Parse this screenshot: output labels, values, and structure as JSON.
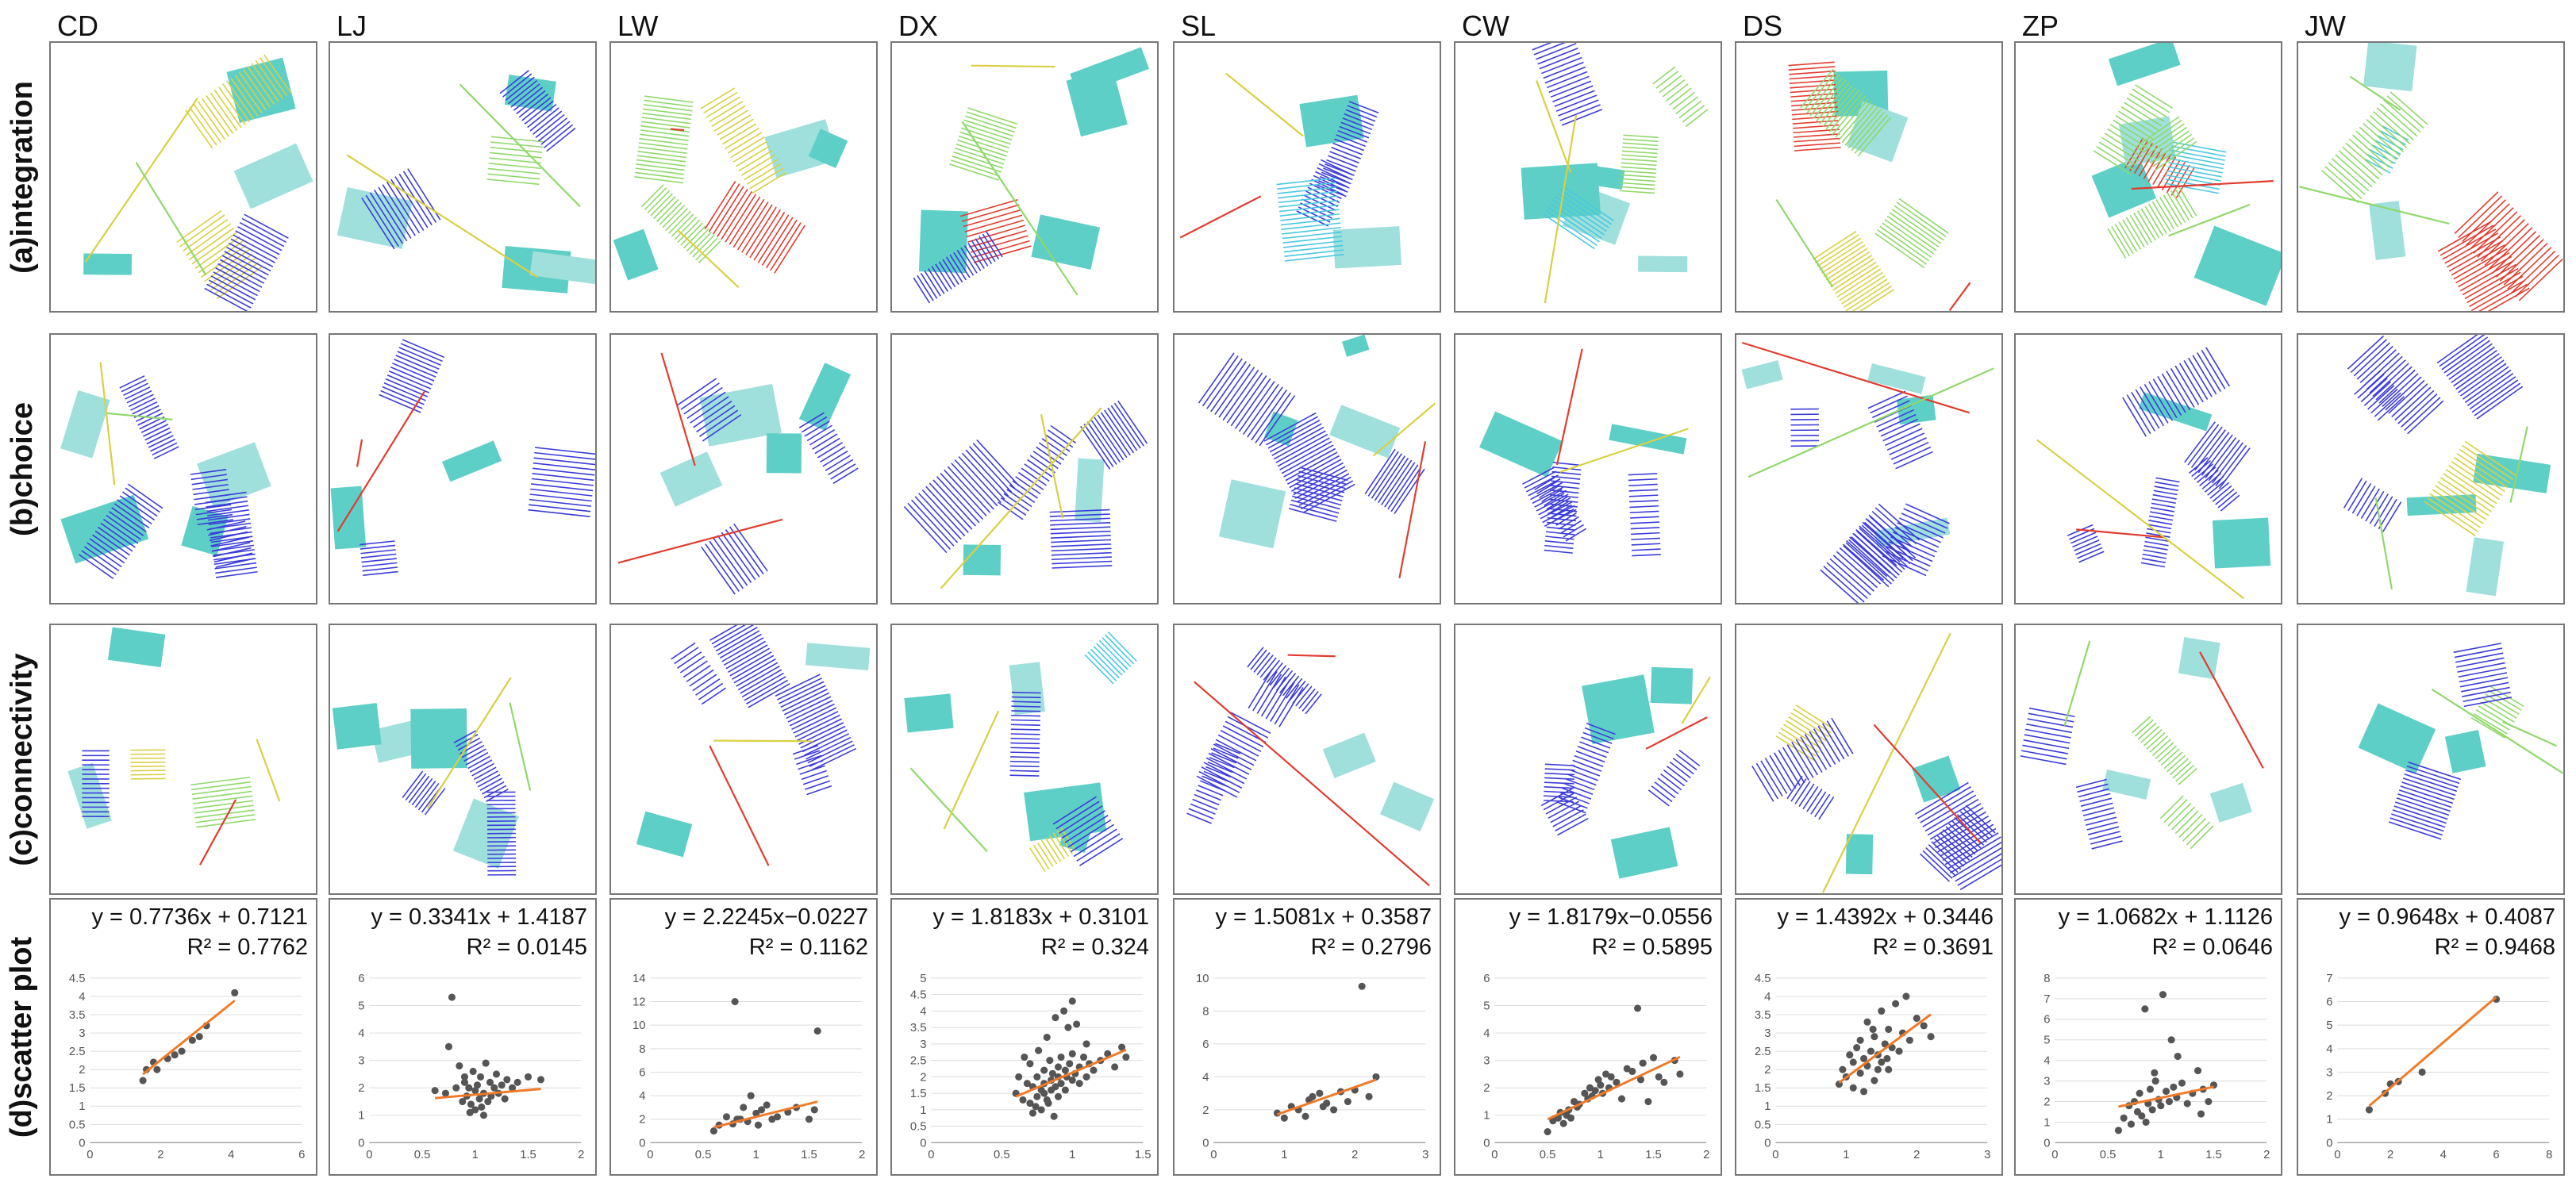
{
  "figure": {
    "columns": [
      "CD",
      "LJ",
      "LW",
      "DX",
      "SL",
      "CW",
      "DS",
      "ZP",
      "JW"
    ],
    "rows": [
      {
        "label": "(a)integration",
        "key": "integration"
      },
      {
        "label": "(b)choice",
        "key": "choice"
      },
      {
        "label": "(c)connectivity",
        "key": "connectivity"
      },
      {
        "label": "(d)scatter plot",
        "key": "scatter"
      }
    ],
    "colors": {
      "block_fill": "#5ecfc6",
      "block_light": "#9fdfdc",
      "line_low": "#3b3bd9",
      "line_mid_low": "#48c8e0",
      "line_mid": "#8fd86a",
      "line_high_mid": "#d8d040",
      "line_high": "#e23b2e",
      "trend_line": "#f07a28",
      "scatter_point": "#555555",
      "frame": "#777777"
    }
  },
  "chart_data": [
    {
      "type": "scatter",
      "site": "CD",
      "equation": "y = 0.7736x + 0.7121",
      "r2": "R² = 0.7762",
      "slope": 0.7736,
      "intercept": 0.7121,
      "xlim": [
        0,
        6
      ],
      "ylim": [
        0,
        4.5
      ],
      "xticks": [
        "0",
        "2",
        "4",
        "6"
      ],
      "yticks": [
        "0",
        "0.5",
        "1",
        "1.5",
        "2",
        "2.5",
        "3",
        "3.5",
        "4",
        "4.5"
      ],
      "x": [
        1.5,
        1.6,
        1.8,
        1.9,
        2.2,
        2.4,
        2.6,
        2.9,
        3.1,
        3.3,
        4.1
      ],
      "y": [
        1.7,
        2.0,
        2.2,
        2.0,
        2.3,
        2.4,
        2.5,
        2.8,
        2.9,
        3.2,
        4.1
      ]
    },
    {
      "type": "scatter",
      "site": "LJ",
      "equation": "y = 0.3341x + 1.4187",
      "r2": "R² = 0.0145",
      "slope": 0.3341,
      "intercept": 1.4187,
      "xlim": [
        0,
        2
      ],
      "ylim": [
        0,
        6
      ],
      "xticks": [
        "0",
        "0.5",
        "1",
        "1.5",
        "2"
      ],
      "yticks": [
        "0",
        "1",
        "2",
        "3",
        "4",
        "5",
        "6"
      ],
      "x": [
        0.62,
        0.72,
        0.75,
        0.78,
        0.82,
        0.85,
        0.88,
        0.9,
        0.92,
        0.94,
        0.96,
        0.98,
        1.0,
        1.0,
        1.02,
        1.04,
        1.05,
        1.06,
        1.08,
        1.1,
        1.12,
        1.14,
        1.15,
        1.18,
        1.2,
        1.22,
        1.25,
        1.28,
        1.3,
        1.35,
        1.4,
        1.5,
        1.62,
        0.95,
        0.9,
        1.08
      ],
      "y": [
        1.9,
        1.8,
        3.5,
        5.3,
        2.0,
        2.8,
        1.5,
        2.2,
        1.7,
        2.0,
        1.4,
        2.6,
        1.9,
        1.2,
        2.1,
        1.6,
        2.4,
        1.3,
        1.8,
        2.9,
        1.5,
        2.2,
        1.7,
        2.0,
        2.5,
        1.8,
        2.1,
        1.6,
        2.3,
        2.0,
        2.2,
        2.4,
        2.3,
        1.1,
        2.4,
        1.0
      ]
    },
    {
      "type": "scatter",
      "site": "LW",
      "equation": "y = 2.2245x−0.0227",
      "r2": "R² = 0.1162",
      "slope": 2.2245,
      "intercept": -0.0227,
      "xlim": [
        0,
        2
      ],
      "ylim": [
        0,
        14
      ],
      "xticks": [
        "0",
        "0.5",
        "1",
        "1.5",
        "2"
      ],
      "yticks": [
        "0",
        "2",
        "4",
        "6",
        "8",
        "10",
        "12",
        "14"
      ],
      "x": [
        0.6,
        0.65,
        0.72,
        0.78,
        0.8,
        0.85,
        0.88,
        0.92,
        0.95,
        1.0,
        1.02,
        1.05,
        1.1,
        1.15,
        1.2,
        1.3,
        1.38,
        1.5,
        1.55,
        1.58,
        0.82
      ],
      "y": [
        1.0,
        1.5,
        2.2,
        1.6,
        12.0,
        2.0,
        3.0,
        1.8,
        4.0,
        2.5,
        1.5,
        2.8,
        3.2,
        2.0,
        2.2,
        2.6,
        3.0,
        2.0,
        2.8,
        9.5,
        2.0
      ]
    },
    {
      "type": "scatter",
      "site": "DX",
      "equation": "y = 1.8183x + 0.3101",
      "r2": "R² = 0.324",
      "slope": 1.8183,
      "intercept": 0.3101,
      "xlim": [
        0,
        1.5
      ],
      "ylim": [
        0,
        5
      ],
      "xticks": [
        "0",
        "0.5",
        "1",
        "1.5"
      ],
      "yticks": [
        "0",
        "0.5",
        "1",
        "1.5",
        "2",
        "2.5",
        "3",
        "3.5",
        "4",
        "4.5",
        "5"
      ],
      "x": [
        0.6,
        0.62,
        0.65,
        0.68,
        0.7,
        0.7,
        0.72,
        0.72,
        0.75,
        0.75,
        0.76,
        0.78,
        0.78,
        0.8,
        0.8,
        0.8,
        0.82,
        0.82,
        0.84,
        0.85,
        0.85,
        0.86,
        0.88,
        0.88,
        0.9,
        0.9,
        0.9,
        0.92,
        0.92,
        0.94,
        0.95,
        0.95,
        0.96,
        0.98,
        1.0,
        1.0,
        1.0,
        1.02,
        1.05,
        1.05,
        1.08,
        1.1,
        1.1,
        1.12,
        1.15,
        1.2,
        1.25,
        1.3,
        1.35,
        1.38,
        0.74,
        0.87,
        0.97,
        1.03,
        0.66,
        0.83
      ],
      "y": [
        1.5,
        2.0,
        1.3,
        1.8,
        1.2,
        2.4,
        1.7,
        0.9,
        2.0,
        1.4,
        2.8,
        1.6,
        1.0,
        2.2,
        1.5,
        1.8,
        3.2,
        1.3,
        2.5,
        1.9,
        1.6,
        2.1,
        1.7,
        3.8,
        1.4,
        2.3,
        2.0,
        1.8,
        2.6,
        4.0,
        2.2,
        1.6,
        2.0,
        2.4,
        1.9,
        4.3,
        2.7,
        2.1,
        2.3,
        1.8,
        2.6,
        2.0,
        3.0,
        2.4,
        2.2,
        2.5,
        2.7,
        2.3,
        2.9,
        2.6,
        1.1,
        0.8,
        3.5,
        3.6,
        2.6,
        1.2
      ]
    },
    {
      "type": "scatter",
      "site": "SL",
      "equation": "y = 1.5081x + 0.3587",
      "r2": "R² = 0.2796",
      "slope": 1.5081,
      "intercept": 0.3587,
      "xlim": [
        0,
        3
      ],
      "ylim": [
        0,
        10
      ],
      "xticks": [
        "0",
        "1",
        "2",
        "3"
      ],
      "yticks": [
        "0",
        "2",
        "4",
        "6",
        "8",
        "10"
      ],
      "x": [
        0.9,
        1.0,
        1.1,
        1.2,
        1.3,
        1.4,
        1.5,
        1.6,
        1.7,
        1.8,
        1.9,
        2.0,
        2.1,
        2.2,
        2.3,
        1.35,
        1.55
      ],
      "y": [
        1.8,
        1.5,
        2.2,
        2.0,
        1.6,
        2.8,
        3.0,
        2.4,
        2.0,
        3.1,
        2.5,
        3.2,
        9.5,
        2.8,
        4.0,
        2.6,
        2.2
      ]
    },
    {
      "type": "scatter",
      "site": "CW",
      "equation": "y = 1.8179x−0.0556",
      "r2": "R² = 0.5895",
      "slope": 1.8179,
      "intercept": -0.0556,
      "xlim": [
        0,
        2
      ],
      "ylim": [
        0,
        6
      ],
      "xticks": [
        "0",
        "0.5",
        "1",
        "1.5",
        "2"
      ],
      "yticks": [
        "0",
        "1",
        "2",
        "3",
        "4",
        "5",
        "6"
      ],
      "x": [
        0.5,
        0.55,
        0.6,
        0.62,
        0.65,
        0.68,
        0.7,
        0.72,
        0.75,
        0.78,
        0.8,
        0.85,
        0.88,
        0.9,
        0.92,
        0.95,
        0.98,
        1.0,
        1.02,
        1.05,
        1.08,
        1.1,
        1.15,
        1.2,
        1.25,
        1.3,
        1.35,
        1.38,
        1.4,
        1.45,
        1.5,
        1.55,
        1.6,
        1.7,
        1.75
      ],
      "y": [
        0.4,
        0.8,
        0.9,
        1.1,
        0.7,
        1.0,
        1.2,
        0.9,
        1.5,
        1.3,
        1.4,
        1.8,
        1.6,
        2.0,
        1.7,
        1.9,
        2.3,
        2.1,
        1.8,
        2.5,
        2.0,
        2.4,
        2.2,
        1.6,
        2.7,
        2.6,
        4.9,
        2.3,
        2.9,
        1.5,
        3.1,
        2.4,
        2.2,
        3.0,
        2.5
      ]
    },
    {
      "type": "scatter",
      "site": "DS",
      "equation": "y = 1.4392x + 0.3446",
      "r2": "R² = 0.3691",
      "slope": 1.4392,
      "intercept": 0.3446,
      "xlim": [
        0,
        3
      ],
      "ylim": [
        0,
        4.5
      ],
      "xticks": [
        "0",
        "1",
        "2",
        "3"
      ],
      "yticks": [
        "0",
        "0.5",
        "1",
        "1.5",
        "2",
        "2.5",
        "3",
        "3.5",
        "4",
        "4.5"
      ],
      "x": [
        0.9,
        0.95,
        1.0,
        1.05,
        1.1,
        1.1,
        1.15,
        1.2,
        1.2,
        1.25,
        1.3,
        1.3,
        1.35,
        1.4,
        1.4,
        1.45,
        1.5,
        1.5,
        1.55,
        1.6,
        1.6,
        1.65,
        1.7,
        1.75,
        1.8,
        1.85,
        1.9,
        2.0,
        2.1,
        2.2,
        1.25,
        1.45,
        1.38,
        1.58
      ],
      "y": [
        1.6,
        2.0,
        1.8,
        2.4,
        1.5,
        2.2,
        2.6,
        1.9,
        2.8,
        2.3,
        2.1,
        3.3,
        2.5,
        1.7,
        2.9,
        2.4,
        3.6,
        2.2,
        2.7,
        3.1,
        2.0,
        2.6,
        3.8,
        2.5,
        3.0,
        4.0,
        2.8,
        3.4,
        3.2,
        2.9,
        1.4,
        2.0,
        3.1,
        2.3
      ]
    },
    {
      "type": "scatter",
      "site": "ZP",
      "equation": "y = 1.0682x + 1.1126",
      "r2": "R² = 0.0646",
      "slope": 1.0682,
      "intercept": 1.1126,
      "xlim": [
        0,
        2
      ],
      "ylim": [
        0,
        8
      ],
      "xticks": [
        "0",
        "0.5",
        "1",
        "1.5",
        "2"
      ],
      "yticks": [
        "0",
        "1",
        "2",
        "3",
        "4",
        "5",
        "6",
        "7",
        "8"
      ],
      "x": [
        0.6,
        0.65,
        0.7,
        0.72,
        0.75,
        0.78,
        0.8,
        0.82,
        0.85,
        0.88,
        0.9,
        0.92,
        0.95,
        0.98,
        1.0,
        1.02,
        1.05,
        1.08,
        1.1,
        1.12,
        1.15,
        1.2,
        1.25,
        1.3,
        1.35,
        1.4,
        1.45,
        1.5,
        0.86,
        0.94,
        1.16,
        1.38
      ],
      "y": [
        0.6,
        1.2,
        1.8,
        0.9,
        2.0,
        1.5,
        2.4,
        1.3,
        6.5,
        1.9,
        2.6,
        1.6,
        3.0,
        2.1,
        1.8,
        7.2,
        2.5,
        2.0,
        5.0,
        2.7,
        2.2,
        2.9,
        1.9,
        2.4,
        3.5,
        2.6,
        2.0,
        2.8,
        1.0,
        3.4,
        4.2,
        1.4
      ]
    },
    {
      "type": "scatter",
      "site": "JW",
      "equation": "y = 0.9648x + 0.4087",
      "r2": "R² = 0.9468",
      "slope": 0.9648,
      "intercept": 0.4087,
      "xlim": [
        0,
        8
      ],
      "ylim": [
        0,
        7
      ],
      "xticks": [
        "0",
        "2",
        "4",
        "6",
        "8"
      ],
      "yticks": [
        "0",
        "1",
        "2",
        "3",
        "4",
        "5",
        "6",
        "7"
      ],
      "x": [
        1.2,
        1.8,
        2.0,
        2.3,
        3.2,
        6.0
      ],
      "y": [
        1.4,
        2.1,
        2.5,
        2.6,
        3.0,
        6.1
      ]
    }
  ]
}
